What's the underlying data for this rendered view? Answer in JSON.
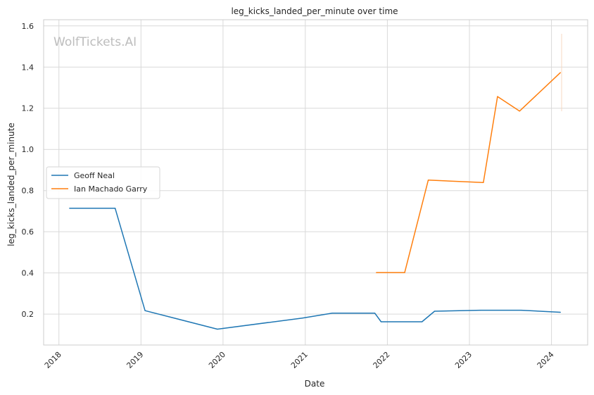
{
  "chart_data": {
    "type": "line",
    "title": "leg_kicks_landed_per_minute over time",
    "xlabel": "Date",
    "ylabel": "leg_kicks_landed_per_minute",
    "watermark": "WolfTickets.AI",
    "x_ticks": [
      "2018",
      "2019",
      "2020",
      "2021",
      "2022",
      "2023",
      "2024"
    ],
    "y_ticks": [
      "0.2",
      "0.4",
      "0.6",
      "0.8",
      "1.0",
      "1.2",
      "1.4",
      "1.6"
    ],
    "xlim": [
      "2017-10-25",
      "2024-06-10"
    ],
    "ylim": [
      0.05,
      1.63
    ],
    "grid": true,
    "legend_position": "center-left",
    "series": [
      {
        "name": "Geoff Neal",
        "color": "#1f77b4",
        "points": [
          [
            "2018-02-17",
            0.714
          ],
          [
            "2018-09-08",
            0.714
          ],
          [
            "2019-01-19",
            0.217
          ],
          [
            "2019-12-07",
            0.127
          ],
          [
            "2020-12-19",
            0.181
          ],
          [
            "2021-05-01",
            0.205
          ],
          [
            "2021-11-06",
            0.205
          ],
          [
            "2021-12-04",
            0.163
          ],
          [
            "2022-06-04",
            0.163
          ],
          [
            "2022-07-30",
            0.214
          ],
          [
            "2023-02-18",
            0.219
          ],
          [
            "2023-08-19",
            0.219
          ],
          [
            "2024-02-10",
            0.209
          ]
        ]
      },
      {
        "name": "Ian Machado Garry",
        "color": "#ff7f0e",
        "points": [
          [
            "2021-11-13",
            0.402
          ],
          [
            "2022-03-19",
            0.402
          ],
          [
            "2022-07-02",
            0.851
          ],
          [
            "2023-03-04",
            0.839
          ],
          [
            "2023-05-06",
            1.257
          ],
          [
            "2023-08-12",
            1.186
          ],
          [
            "2024-02-10",
            1.373
          ]
        ]
      }
    ]
  }
}
